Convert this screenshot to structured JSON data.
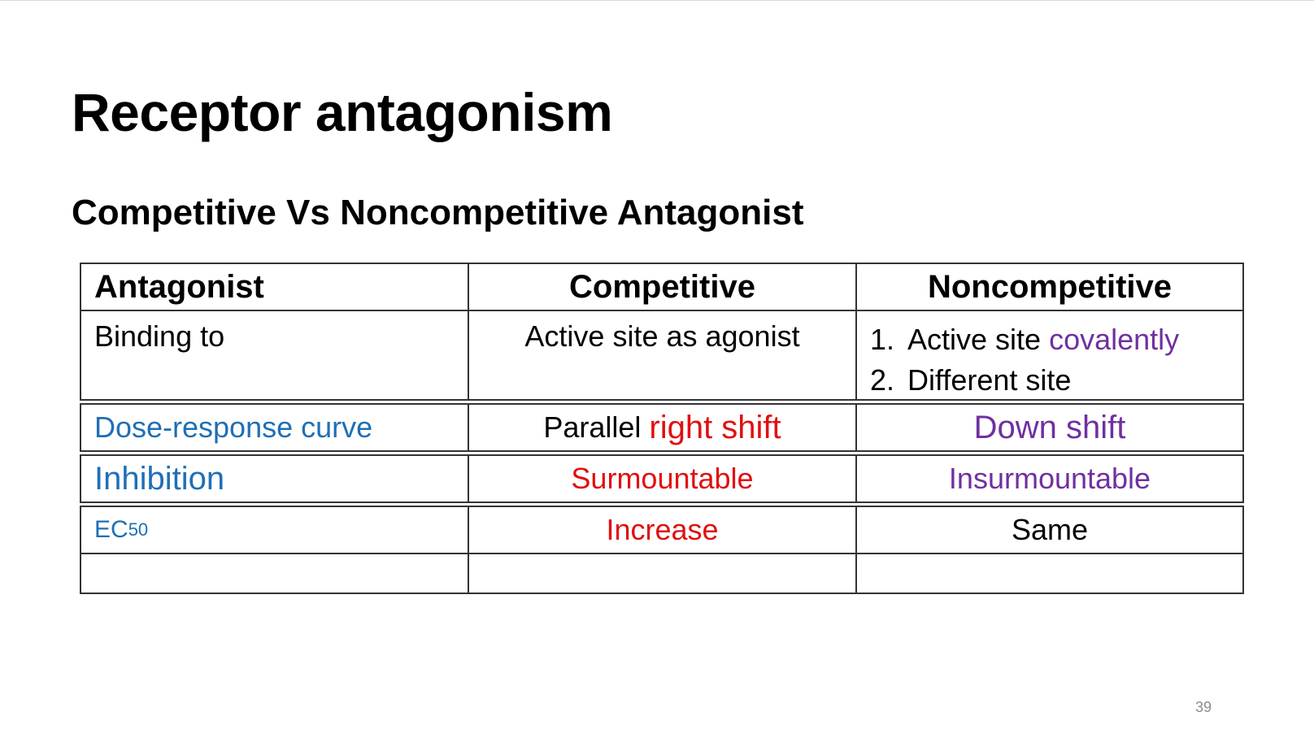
{
  "slide": {
    "title": "Receptor antagonism",
    "subtitle": "Competitive Vs Noncompetitive Antagonist",
    "page_number": "39"
  },
  "table": {
    "headers": [
      "Antagonist",
      "Competitive",
      "Noncompetitive"
    ],
    "binding": {
      "label": "Binding to",
      "competitive": "Active site as agonist",
      "noncompetitive_items": [
        {
          "num": "1.",
          "text": "Active site ",
          "highlight": "covalently"
        },
        {
          "num": "2.",
          "text": "Different site"
        }
      ]
    },
    "dose_response": {
      "label": "Dose-response curve",
      "competitive_prefix": "Parallel ",
      "competitive_highlight": "right shift",
      "noncompetitive": "Down shift"
    },
    "inhibition": {
      "label": "Inhibition",
      "competitive": "Surmountable",
      "noncompetitive": "Insurmountable"
    },
    "ec50": {
      "label_main": "EC",
      "label_sub": "50",
      "competitive": "Increase",
      "noncompetitive": "Same"
    }
  },
  "colors": {
    "blue": "#1f6fb5",
    "red": "#e01010",
    "purple": "#7030a0"
  }
}
